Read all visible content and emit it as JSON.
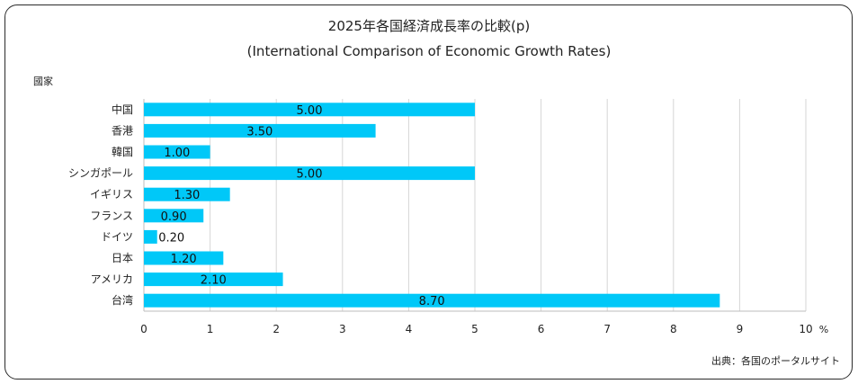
{
  "chart_data": {
    "type": "bar",
    "orientation": "horizontal",
    "title": "2025年各国経済成長率の比較(p)",
    "subtitle": "(International Comparison of Economic Growth Rates)",
    "ylabel": "國家",
    "x_unit": "%",
    "categories": [
      "中国",
      "香港",
      "韓国",
      "シンガポール",
      "イギリス",
      "フランス",
      "ドイツ",
      "日本",
      "アメリカ",
      "台湾"
    ],
    "values": [
      5.0,
      3.5,
      1.0,
      5.0,
      1.3,
      0.9,
      0.2,
      1.2,
      2.1,
      8.7
    ],
    "data_labels": [
      "5.00",
      "3.50",
      "1.00",
      "5.00",
      "1.30",
      "0.90",
      "0.20",
      "1.20",
      "2.10",
      "8.70"
    ],
    "xlim": [
      0,
      10
    ],
    "xticks": [
      "0",
      "1",
      "2",
      "3",
      "4",
      "5",
      "6",
      "7",
      "8",
      "9",
      "10"
    ],
    "grid": "vertical",
    "legend": "none",
    "bar_color": "#00c8f8",
    "grid_color": "#d6d6d6",
    "source": "出典：各国のポータルサイト"
  }
}
